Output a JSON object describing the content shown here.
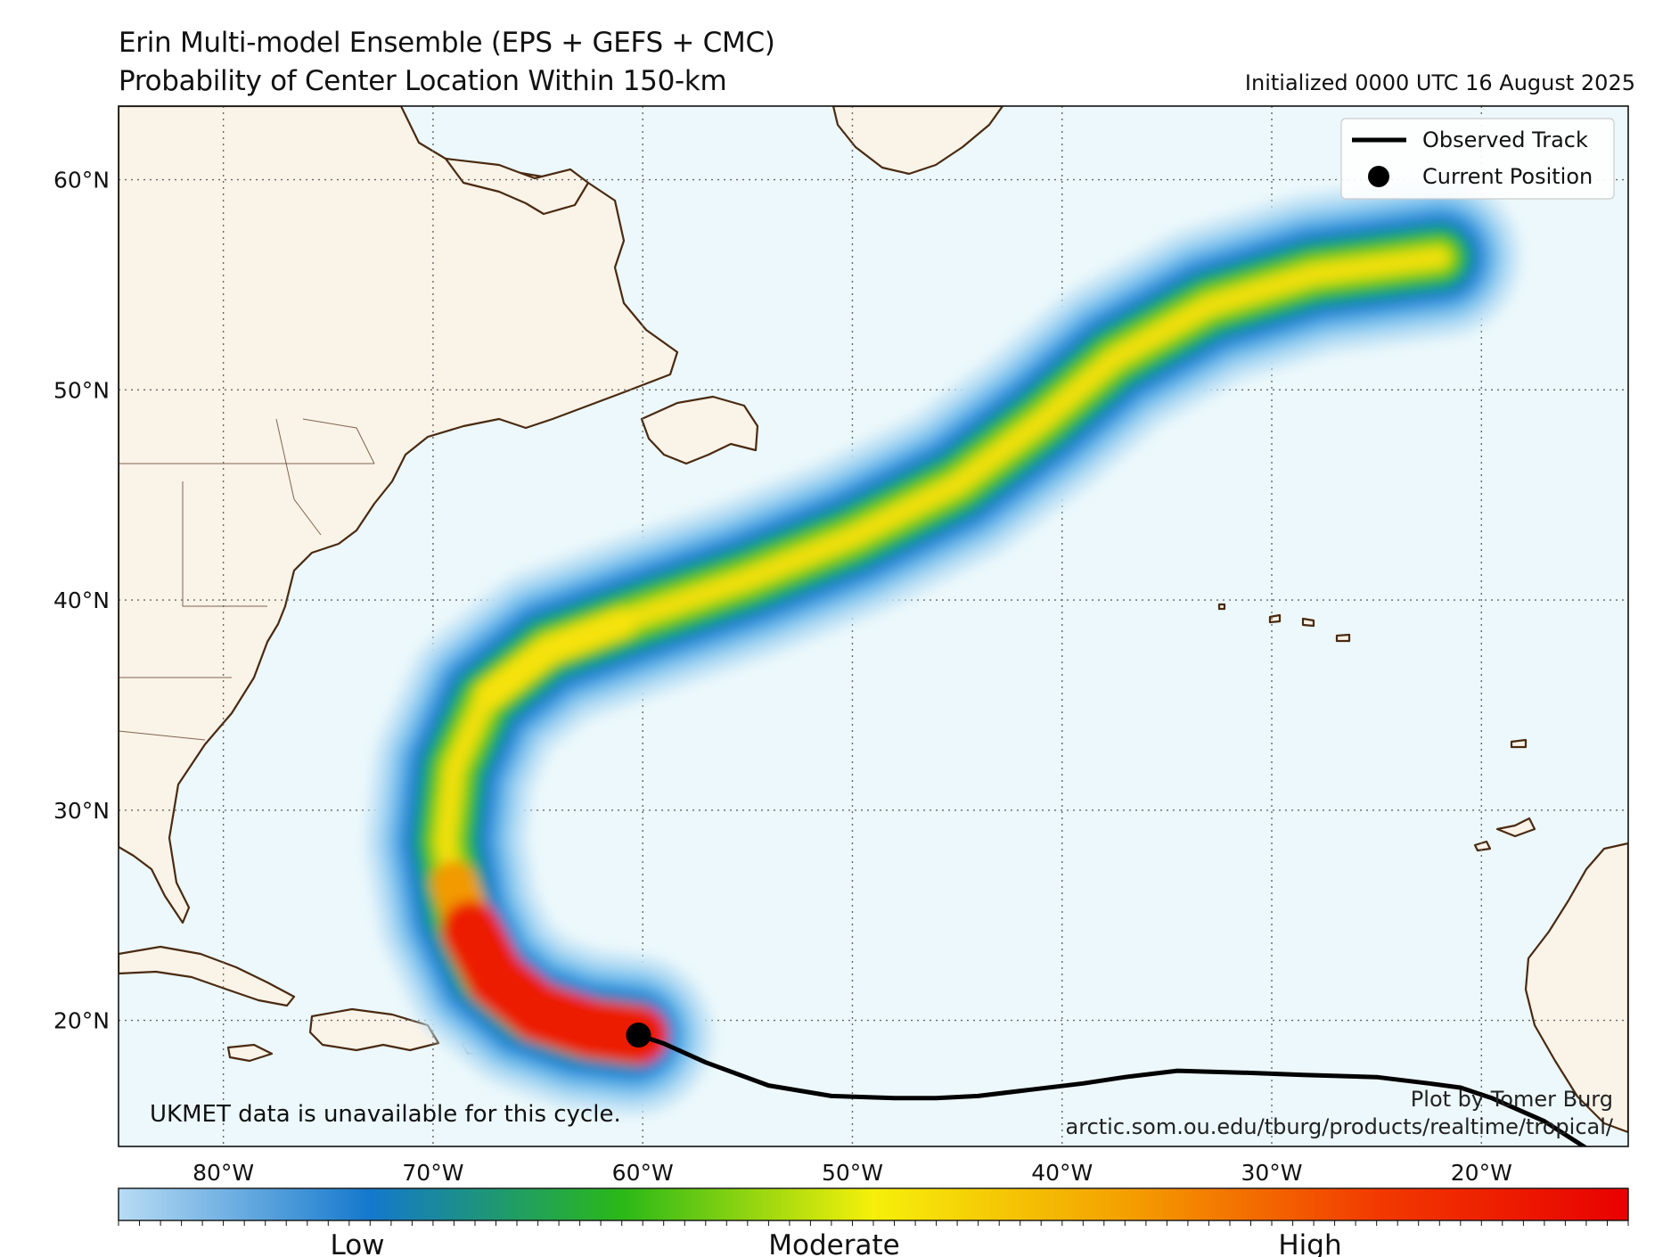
{
  "header": {
    "title_line1": "Erin Multi-model Ensemble (EPS + GEFS + CMC)",
    "title_line2": "Probability of Center Location Within 150-km",
    "initialized": "Initialized 0000 UTC 16 August 2025"
  },
  "map": {
    "lon_range": [
      -85,
      -13
    ],
    "lat_range": [
      14,
      63.5
    ],
    "lat_labels": [
      {
        "value": 60,
        "text": "60°N"
      },
      {
        "value": 50,
        "text": "50°N"
      },
      {
        "value": 40,
        "text": "40°N"
      },
      {
        "value": 30,
        "text": "30°N"
      },
      {
        "value": 20,
        "text": "20°N"
      }
    ],
    "lon_labels": [
      {
        "value": -80,
        "text": "80°W"
      },
      {
        "value": -70,
        "text": "70°W"
      },
      {
        "value": -60,
        "text": "60°W"
      },
      {
        "value": -50,
        "text": "50°W"
      },
      {
        "value": -40,
        "text": "40°W"
      },
      {
        "value": -30,
        "text": "30°W"
      },
      {
        "value": -20,
        "text": "20°W"
      }
    ],
    "colors": {
      "ocean": "#ecf8fb",
      "land": "#faf3e8",
      "coast": "#4a2a10",
      "grid": "#666666",
      "track": "#000000"
    },
    "observed_track": [
      [
        -14.5,
        13.6
      ],
      [
        -17,
        15.2
      ],
      [
        -19.5,
        16.3
      ],
      [
        -21,
        16.8
      ],
      [
        -22.5,
        17.0
      ],
      [
        -25,
        17.3
      ],
      [
        -28.5,
        17.4
      ],
      [
        -31,
        17.5
      ],
      [
        -34.5,
        17.6
      ],
      [
        -37,
        17.3
      ],
      [
        -39,
        17.0
      ],
      [
        -41.5,
        16.7
      ],
      [
        -44,
        16.4
      ],
      [
        -46,
        16.3
      ],
      [
        -48,
        16.3
      ],
      [
        -51,
        16.4
      ],
      [
        -54,
        16.9
      ],
      [
        -57,
        18.0
      ],
      [
        -59,
        18.9
      ],
      [
        -60.2,
        19.3
      ]
    ],
    "current_position": [
      -60.2,
      19.3
    ],
    "probability_swath": [
      {
        "level": 1,
        "width": 7.6,
        "color": "#c4e4f6"
      },
      {
        "level": 2,
        "width": 6.3,
        "color": "#8ccaf0"
      },
      {
        "level": 3,
        "width": 5.1,
        "color": "#4aa4e2"
      },
      {
        "level": 4,
        "width": 4.0,
        "color": "#1478cc"
      },
      {
        "level": 5,
        "width": 3.1,
        "color": "#13a07a"
      },
      {
        "level": 6,
        "width": 2.4,
        "color": "#2ab818"
      },
      {
        "level": 7,
        "width": 1.6,
        "color": "#9ad616"
      },
      {
        "level": 8,
        "width": 0.9,
        "color": "#f2df08"
      }
    ],
    "swath_centerline": [
      [
        -60.5,
        19.3
      ],
      [
        -63,
        19.6
      ],
      [
        -65.5,
        20.5
      ],
      [
        -67.5,
        22.2
      ],
      [
        -68.8,
        25
      ],
      [
        -69.4,
        28.5
      ],
      [
        -69,
        32
      ],
      [
        -67.5,
        35.3
      ],
      [
        -64.5,
        37.7
      ],
      [
        -60,
        39.3
      ],
      [
        -55,
        41.0
      ],
      [
        -50,
        43.0
      ],
      [
        -45,
        45.5
      ],
      [
        -41,
        48.5
      ],
      [
        -37.5,
        51.5
      ],
      [
        -33,
        54.0
      ],
      [
        -28,
        55.5
      ],
      [
        -22,
        56.3
      ]
    ],
    "red_core": [
      [
        -60.2,
        19.3
      ],
      [
        -62.5,
        19.6
      ],
      [
        -65,
        20.4
      ],
      [
        -67,
        22
      ],
      [
        -68.2,
        24.3
      ]
    ],
    "orange_core": [
      [
        -68.2,
        24.3
      ],
      [
        -69,
        26.5
      ]
    ],
    "yellow_cores": [
      [
        [
          -67.3,
          35.5
        ],
        [
          -64.5,
          37.6
        ],
        [
          -61,
          38.9
        ]
      ]
    ]
  },
  "legend": {
    "observed_track": "Observed Track",
    "current_position": "Current Position"
  },
  "notes": {
    "ukmet": "UKMET data is unavailable for this cycle.",
    "credit": "Plot by Tomer Burg",
    "url": "arctic.som.ou.edu/tburg/products/realtime/tropical/"
  },
  "colorbar": {
    "labels": [
      "Low",
      "Moderate",
      "High"
    ],
    "stops": [
      "#b8dcf4",
      "#1478cc",
      "#2ab818",
      "#f6f00a",
      "#f4a000",
      "#f23a00",
      "#e80000"
    ]
  }
}
